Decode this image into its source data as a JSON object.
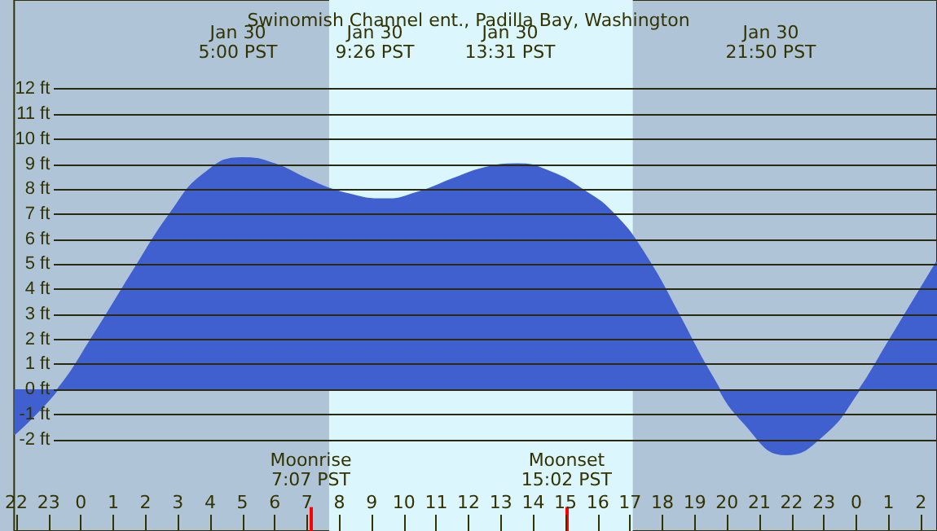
{
  "chart_data": {
    "type": "area",
    "title": "Swinomish Channel ent., Padilla Bay, Washington",
    "x": [
      "--01-29T21:56",
      "--01-29T23:17",
      "--01-30T00:19",
      "--01-30T01:45",
      "--01-30T02:45",
      "--01-30T03:48",
      "--01-30T05:00",
      "--01-30T06:00",
      "--01-30T07:00",
      "--01-30T08:00",
      "--01-30T09:26",
      "--01-30T10:30",
      "--01-30T11:30",
      "--01-30T12:30",
      "--01-30T13:31",
      "--01-30T14:30",
      "--01-30T15:30",
      "--01-30T16:30",
      "--01-30T17:30",
      "--01-30T18:30",
      "--01-30T19:30",
      "--01-30T20:30",
      "--01-30T21:50",
      "--01-30T23:00",
      "--01-31T00:00",
      "--01-31T01:00",
      "--01-31T02:30"
    ],
    "series": [
      {
        "color": "#4060d0",
        "values": [
          -1.8,
          0,
          2,
          5,
          7,
          8.6,
          9.25,
          9.0,
          8.4,
          7.9,
          7.6,
          7.9,
          8.4,
          8.85,
          9.0,
          8.7,
          8.0,
          7.0,
          5.3,
          3.0,
          0.6,
          -1.3,
          -2.6,
          -1.8,
          -0.2,
          1.9,
          5.1
        ]
      }
    ],
    "xlim": [
      "--01-29T21:56",
      "--01-31T02:30"
    ],
    "xticks": [
      {
        "value": "--01-29T22:00",
        "label": "22"
      },
      {
        "value": "--01-29T23:00",
        "label": "23"
      },
      {
        "value": "--01-30T00:00",
        "label": "0"
      },
      {
        "value": "--01-30T01:00",
        "label": "1"
      },
      {
        "value": "--01-30T02:00",
        "label": "2"
      },
      {
        "value": "--01-30T03:00",
        "label": "3"
      },
      {
        "value": "--01-30T04:00",
        "label": "4"
      },
      {
        "value": "--01-30T05:00",
        "label": "5"
      },
      {
        "value": "--01-30T06:00",
        "label": "6"
      },
      {
        "value": "--01-30T07:00",
        "label": "7"
      },
      {
        "value": "--01-30T08:00",
        "label": "8"
      },
      {
        "value": "--01-30T09:00",
        "label": "9"
      },
      {
        "value": "--01-30T10:00",
        "label": "10"
      },
      {
        "value": "--01-30T11:00",
        "label": "11"
      },
      {
        "value": "--01-30T12:00",
        "label": "12"
      },
      {
        "value": "--01-30T13:00",
        "label": "13"
      },
      {
        "value": "--01-30T14:00",
        "label": "14"
      },
      {
        "value": "--01-30T15:00",
        "label": "15"
      },
      {
        "value": "--01-30T16:00",
        "label": "16"
      },
      {
        "value": "--01-30T17:00",
        "label": "17"
      },
      {
        "value": "--01-30T18:00",
        "label": "18"
      },
      {
        "value": "--01-30T19:00",
        "label": "19"
      },
      {
        "value": "--01-30T20:00",
        "label": "20"
      },
      {
        "value": "--01-30T21:00",
        "label": "21"
      },
      {
        "value": "--01-30T22:00",
        "label": "22"
      },
      {
        "value": "--01-30T23:00",
        "label": "23"
      },
      {
        "value": "--01-31T00:00",
        "label": "0"
      },
      {
        "value": "--01-31T01:00",
        "label": "1"
      },
      {
        "value": "--01-31T02:00",
        "label": "2"
      }
    ],
    "ylim": [
      -5.66,
      15.56
    ],
    "yticks": [
      {
        "value": -2,
        "label": "-2 ft"
      },
      {
        "value": -1,
        "label": "-1 ft"
      },
      {
        "value": 0,
        "label": "0 ft"
      },
      {
        "value": 1,
        "label": "1 ft"
      },
      {
        "value": 2,
        "label": "2 ft"
      },
      {
        "value": 3,
        "label": "3 ft"
      },
      {
        "value": 4,
        "label": "4 ft"
      },
      {
        "value": 5,
        "label": "5 ft"
      },
      {
        "value": 6,
        "label": "6 ft"
      },
      {
        "value": 7,
        "label": "7 ft"
      },
      {
        "value": 8,
        "label": "8 ft"
      },
      {
        "value": 9,
        "label": "9 ft"
      },
      {
        "value": 10,
        "label": "10 ft"
      },
      {
        "value": 11,
        "label": "11 ft"
      },
      {
        "value": 12,
        "label": "12 ft"
      }
    ],
    "grid": "y",
    "bands": [
      {
        "axis": "x",
        "from": "--01-30T07:41",
        "to": "--01-30T17:05",
        "color": "#dcf6fe"
      }
    ],
    "ref_lines": [
      {
        "axis": "x",
        "value": "--01-30T07:07",
        "label": "Moonrise\n7:07 PST",
        "color": "#ff0000"
      },
      {
        "axis": "x",
        "value": "--01-30T15:02",
        "label": "Moonset\n15:02 PST",
        "color": "#ff0000"
      }
    ],
    "annotations": [
      "Jan 30\n5:00 PST",
      "Jan 30\n9:26 PST",
      "Jan 30\n13:31 PST",
      "Jan 30\n21:50 PST"
    ]
  }
}
